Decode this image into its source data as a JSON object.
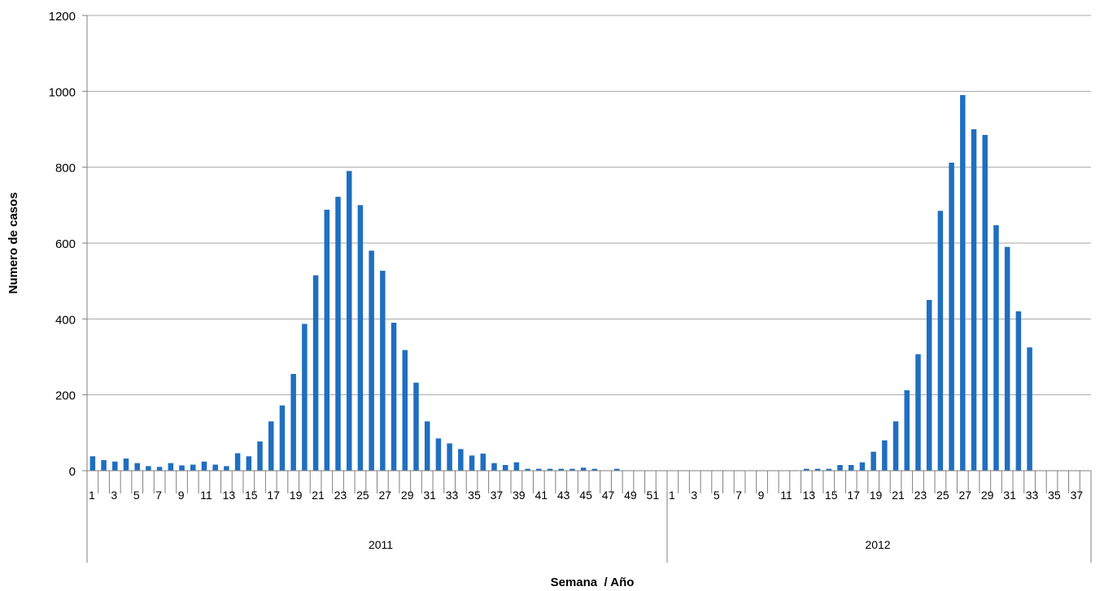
{
  "chart_data": {
    "type": "bar",
    "title": "",
    "ylabel": "Numero de casos",
    "xlabel": "Semana  / Año",
    "ylim": [
      0,
      1200
    ],
    "yticks": [
      0,
      200,
      400,
      600,
      800,
      1000,
      1200
    ],
    "grid": true,
    "legend": "none",
    "colors": {
      "bar": "#1f6fc0",
      "grid": "#a6a6a6",
      "axis": "#7f7f7f"
    },
    "groups": [
      {
        "year": "2011",
        "weeks": [
          1,
          2,
          3,
          4,
          5,
          6,
          7,
          8,
          9,
          10,
          11,
          12,
          13,
          14,
          15,
          16,
          17,
          18,
          19,
          20,
          21,
          22,
          23,
          24,
          25,
          26,
          27,
          28,
          29,
          30,
          31,
          32,
          33,
          34,
          35,
          36,
          37,
          38,
          39,
          40,
          41,
          42,
          43,
          44,
          45,
          46,
          47,
          48,
          49,
          50,
          51,
          52
        ],
        "tick_labels": [
          "1",
          "3",
          "5",
          "7",
          "9",
          "11",
          "13",
          "15",
          "17",
          "19",
          "21",
          "23",
          "25",
          "27",
          "29",
          "31",
          "33",
          "35",
          "37",
          "39",
          "41",
          "43",
          "45",
          "47",
          "49",
          "51"
        ],
        "values": [
          38,
          28,
          24,
          32,
          20,
          12,
          10,
          20,
          14,
          16,
          24,
          16,
          12,
          46,
          38,
          77,
          130,
          172,
          255,
          387,
          515,
          688,
          722,
          790,
          700,
          580,
          527,
          390,
          318,
          232,
          130,
          85,
          72,
          57,
          40,
          45,
          20,
          15,
          22,
          5,
          5,
          5,
          5,
          5,
          8,
          5,
          0,
          5,
          0,
          0,
          0,
          0
        ]
      },
      {
        "year": "2012",
        "weeks": [
          1,
          2,
          3,
          4,
          5,
          6,
          7,
          8,
          9,
          10,
          11,
          12,
          13,
          14,
          15,
          16,
          17,
          18,
          19,
          20,
          21,
          22,
          23,
          24,
          25,
          26,
          27,
          28,
          29,
          30,
          31,
          32,
          33,
          34,
          35,
          36,
          37,
          38
        ],
        "tick_labels": [
          "1",
          "3",
          "5",
          "7",
          "9",
          "11",
          "13",
          "15",
          "17",
          "19",
          "21",
          "23",
          "25",
          "27",
          "29",
          "31",
          "33",
          "35",
          "37"
        ],
        "values": [
          0,
          0,
          0,
          0,
          0,
          0,
          0,
          0,
          0,
          0,
          0,
          0,
          5,
          5,
          5,
          15,
          15,
          22,
          50,
          80,
          130,
          212,
          307,
          450,
          685,
          812,
          990,
          900,
          885,
          647,
          590,
          420,
          325,
          0,
          0,
          0,
          0,
          0
        ]
      }
    ]
  }
}
